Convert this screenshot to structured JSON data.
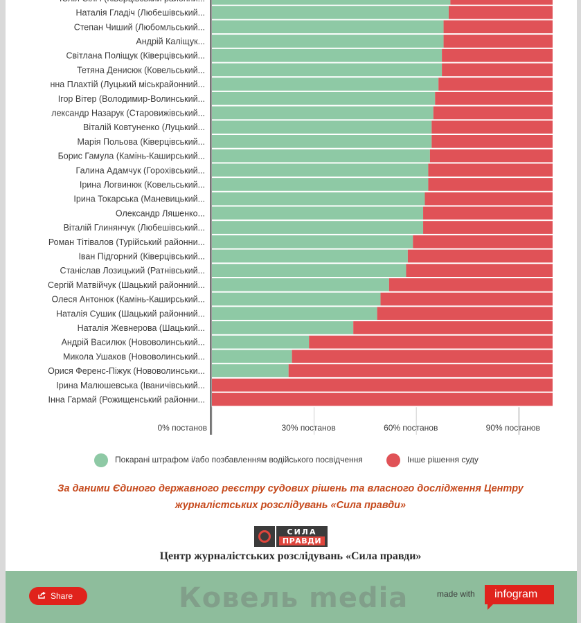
{
  "chart_data": {
    "type": "bar",
    "orientation": "horizontal",
    "stacked": true,
    "categories": [
      "Юлія Сіліч (Ківерцівський районни...",
      "Наталія Гладіч (Любешівський...",
      "Степан Чиший (Любомльський...",
      "Андрій Каліщук...",
      "Світлана Поліщук (Ківерцівський...",
      "Тетяна Денисюк (Ковельський...",
      "нна Плахтій (Луцький міськрайонний...",
      "Ігор Вітер (Володимир-Волинський...",
      "лександр Назарук (Старовижівський...",
      "Віталій Ковтуненко (Луцький...",
      "Марія Польова (Ківерцівський...",
      "Борис Гамула (Камінь-Каширський...",
      "Галина Адамчук (Горохівський...",
      "Ірина Логвинюк (Ковельський...",
      "Ірина Токарська (Маневицький...",
      "Олександр Ляшенко...",
      "Віталій Глинянчук (Любешівський...",
      "Роман Тітівалов (Турійський районни...",
      "Іван Підгорний (Ківерцівський...",
      "Станіслав Лозицький (Ратнівський...",
      "Сергій Матвійчук (Шацький районний...",
      "Олеся Антонюк (Камінь-Каширський...",
      "Наталія Сушик (Шацький районний...",
      "Наталія Жевнерова (Шацький...",
      "Андрій Василюк (Нововолинський...",
      "Микола Ушаков (Нововолинський...",
      "Орися Ференс-Піжук (Нововолинськи...",
      "Ірина Малюшевська (Іваничівський...",
      "Інна Гармай (Рожищенський районни..."
    ],
    "series": [
      {
        "name": "Покарані штрафом і/або позбавленням водійського посвідчення",
        "color": "#8ec9a5",
        "values": [
          70,
          69.5,
          68,
          68,
          67.5,
          67.5,
          66.5,
          65.5,
          65,
          64.5,
          64.5,
          64,
          63.5,
          63.5,
          62.5,
          62,
          62,
          59,
          57.5,
          57,
          52,
          49.5,
          48.5,
          41.5,
          28.5,
          23.5,
          22.5,
          0,
          0
        ]
      },
      {
        "name": "Інше рішення суду",
        "color": "#e05257",
        "values": [
          30,
          30.5,
          32,
          32,
          32.5,
          32.5,
          33.5,
          34.5,
          35,
          35.5,
          35.5,
          36,
          36.5,
          36.5,
          37.5,
          38,
          38,
          41,
          42.5,
          43,
          48,
          50.5,
          51.5,
          58.5,
          71.5,
          76.5,
          77.5,
          100,
          100
        ]
      }
    ],
    "x_ticks": [
      {
        "value": 0,
        "label": "0% постанов"
      },
      {
        "value": 30,
        "label": "30% постанов"
      },
      {
        "value": 60,
        "label": "60% постанов"
      },
      {
        "value": 90,
        "label": "90% постанов"
      }
    ],
    "xlim": [
      0,
      100
    ],
    "grid": "vertical",
    "legend_position": "bottom"
  },
  "source": {
    "line1": "За даними Єдиного державного реєстру судових рішень та власного дослідження Центру",
    "line2": "журналістських розслідувань «Сила правди»"
  },
  "logo": {
    "line1": "СИЛА",
    "line2": "ПРАВДИ"
  },
  "organization": "Центр журналістських розслідувань «Сила правди»",
  "footer": {
    "share_label": "Share",
    "made_with": "made with",
    "brand": "infogram",
    "watermark": "Ковель media"
  }
}
